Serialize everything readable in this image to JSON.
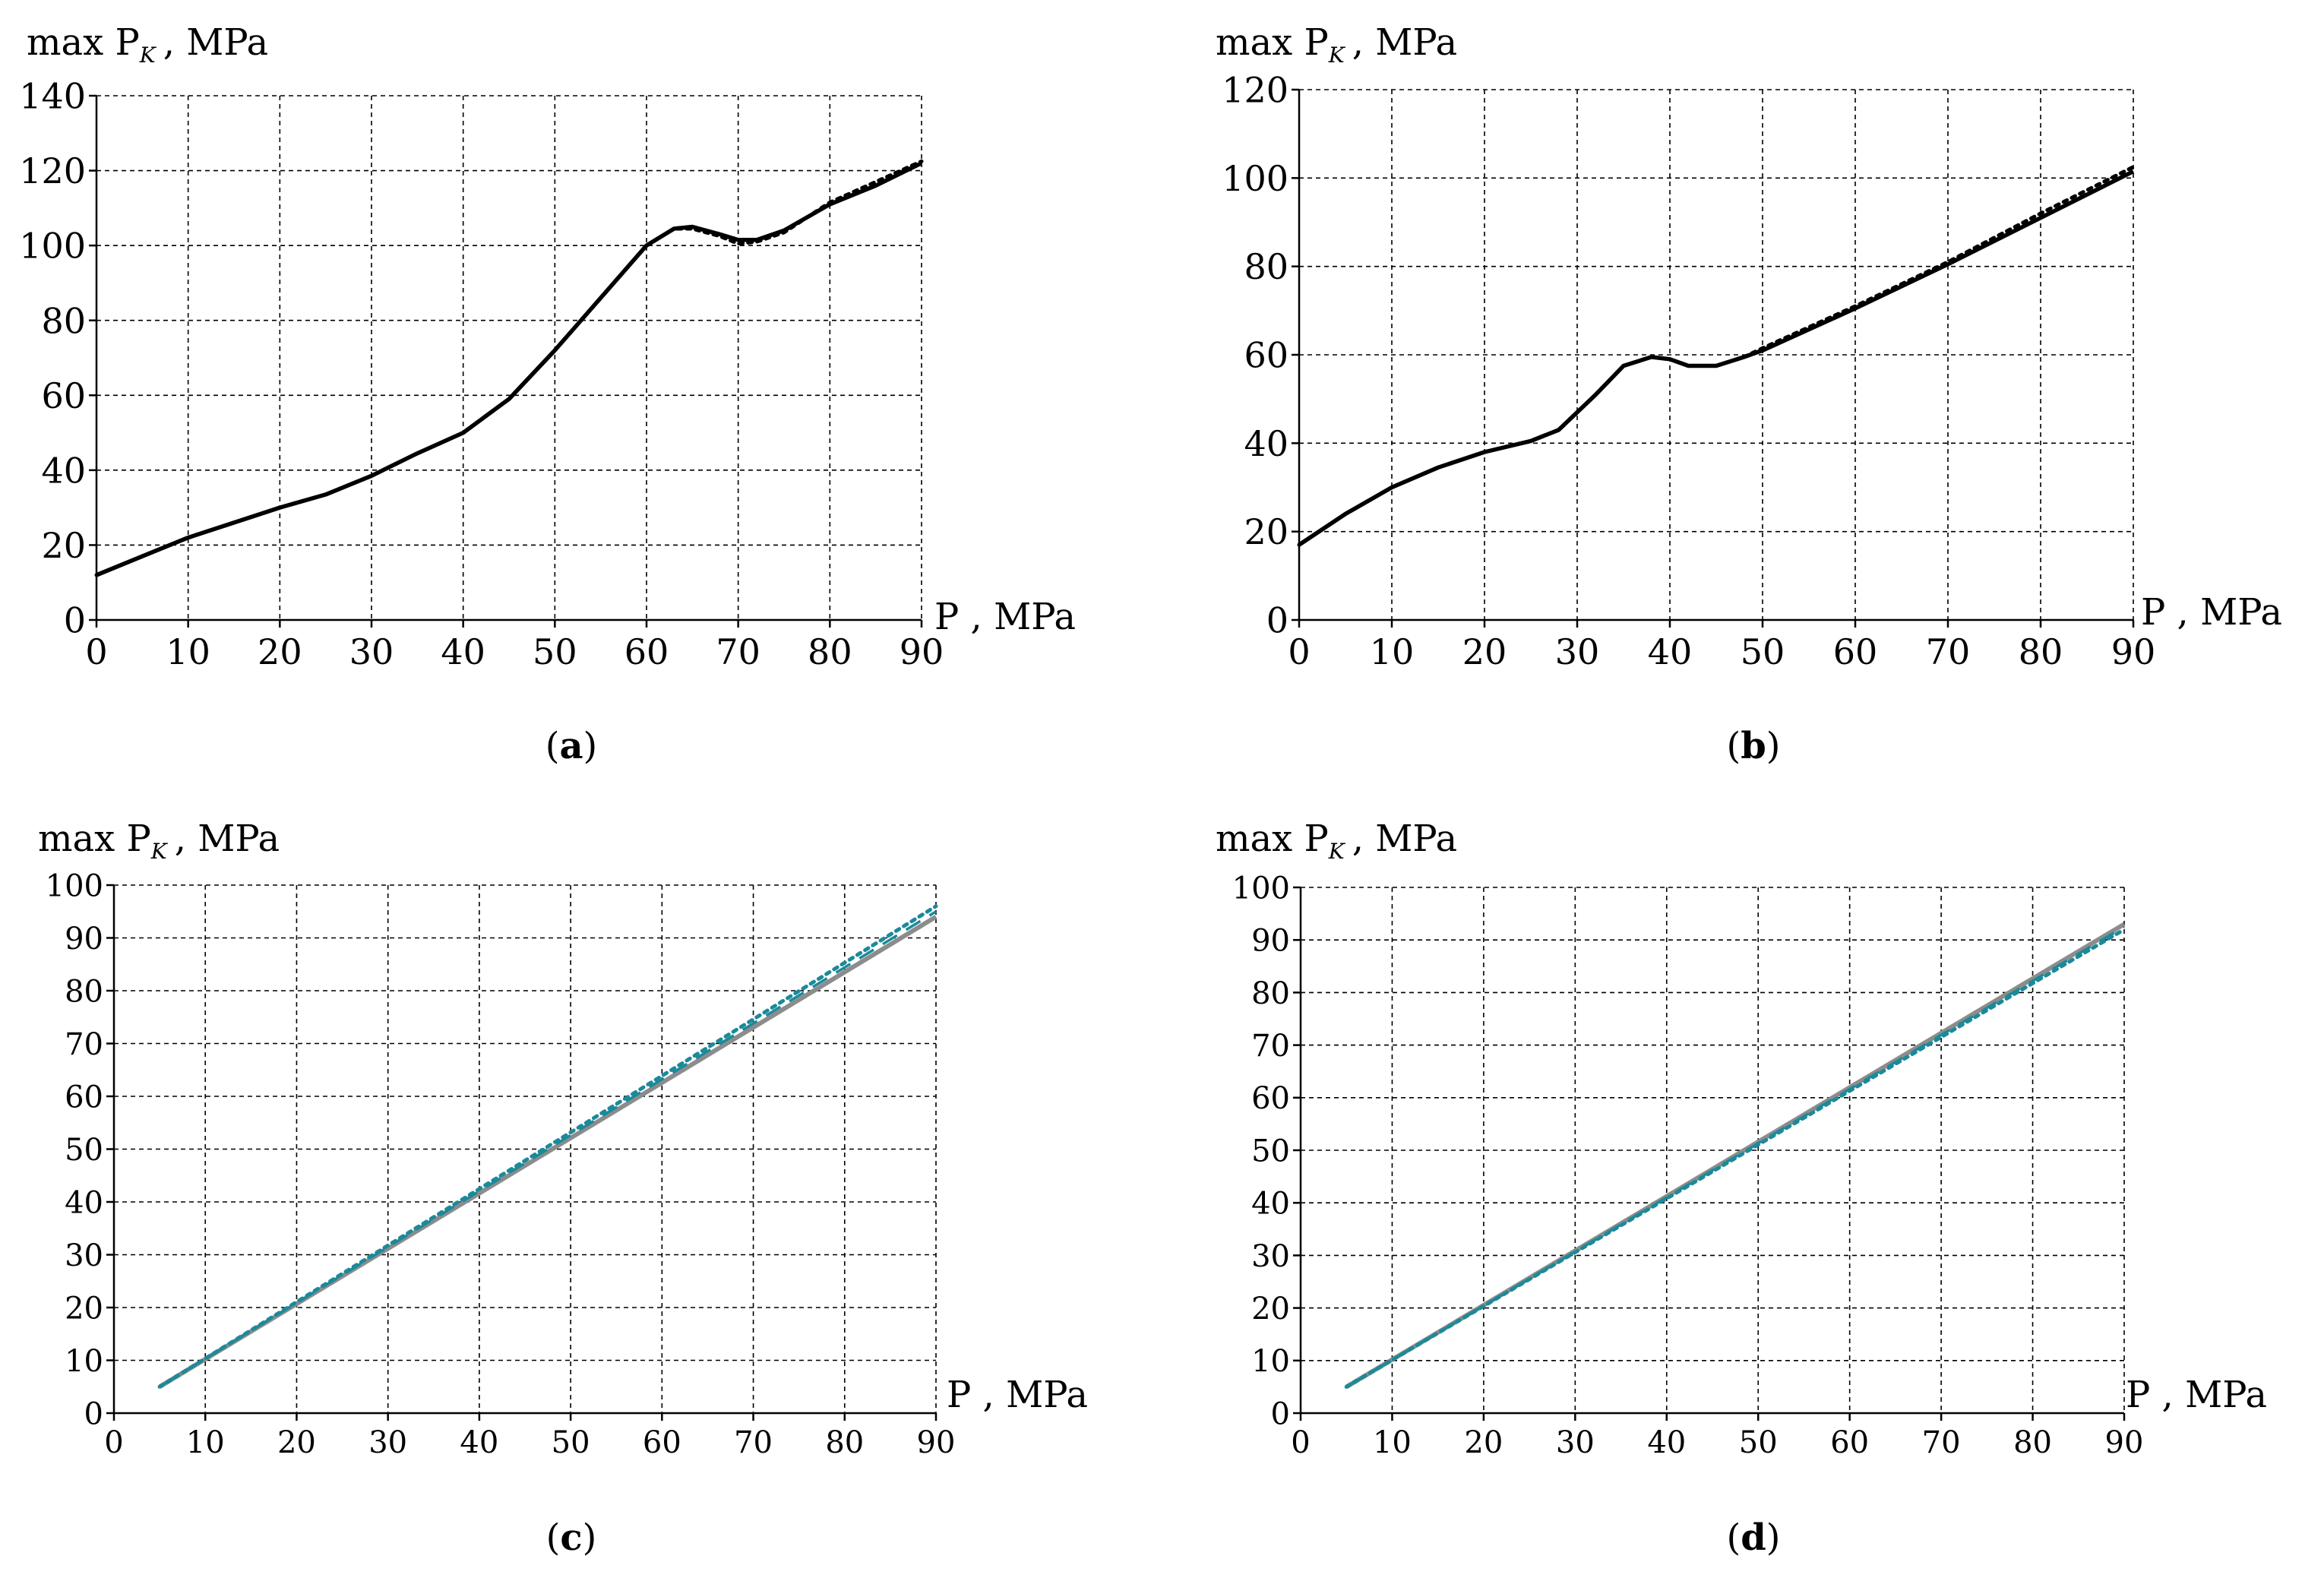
{
  "figure": {
    "panels": [
      {
        "id": "a",
        "label": "(a)",
        "label_letter": "a"
      },
      {
        "id": "b",
        "label": "(b)",
        "label_letter": "b"
      },
      {
        "id": "c",
        "label": "(c)",
        "label_letter": "c"
      },
      {
        "id": "d",
        "label": "(d)",
        "label_letter": "d"
      }
    ]
  },
  "colors": {
    "black": "#000000",
    "teal": "#1a8a9a",
    "gray": "#8c8c8c",
    "grid": "#000000"
  },
  "chart_data": [
    {
      "panel": "a",
      "type": "line",
      "title": "",
      "ylabel": {
        "main": "max P",
        "sub": "K",
        "unit": ", MPa"
      },
      "xlabel": "P , MPa",
      "xlim": [
        0,
        90
      ],
      "ylim": [
        0,
        140
      ],
      "xticks": [
        "0",
        "10",
        "20",
        "30",
        "40",
        "50",
        "60",
        "70",
        "80",
        "90"
      ],
      "yticks": [
        "0",
        "20",
        "40",
        "60",
        "80",
        "100",
        "120",
        "140"
      ],
      "grid": true,
      "series": [
        {
          "name": "solid",
          "style": "solid",
          "color": "black",
          "x": [
            0,
            5,
            10,
            15,
            20,
            25,
            30,
            35,
            40,
            45,
            50,
            55,
            60,
            63,
            65,
            68,
            70,
            72,
            75,
            80,
            85,
            90
          ],
          "y": [
            12,
            17,
            22,
            26,
            30,
            33.5,
            38.5,
            44.5,
            50,
            59,
            72,
            86,
            100,
            104.5,
            105,
            103,
            101.5,
            101.5,
            104,
            111,
            116,
            122
          ]
        },
        {
          "name": "dotted",
          "style": "dotted",
          "color": "black",
          "x": [
            0,
            5,
            10,
            15,
            20,
            25,
            30,
            35,
            40,
            45,
            50,
            55,
            60,
            63,
            65,
            68,
            70,
            72,
            75,
            80,
            85,
            90
          ],
          "y": [
            12,
            17,
            22,
            26,
            30,
            33.5,
            38.5,
            44.5,
            50,
            59,
            72,
            86,
            100,
            104.5,
            104.5,
            102.5,
            100.5,
            101,
            103.5,
            111.5,
            117,
            122.5
          ]
        }
      ]
    },
    {
      "panel": "b",
      "type": "line",
      "title": "",
      "ylabel": {
        "main": "max P",
        "sub": "K",
        "unit": ", MPa"
      },
      "xlabel": "P , MPa",
      "xlim": [
        0,
        90
      ],
      "ylim": [
        0,
        120
      ],
      "xticks": [
        "0",
        "10",
        "20",
        "30",
        "40",
        "50",
        "60",
        "70",
        "80",
        "90"
      ],
      "yticks": [
        "0",
        "20",
        "40",
        "60",
        "80",
        "100",
        "120"
      ],
      "grid": true,
      "series": [
        {
          "name": "solid",
          "style": "solid",
          "color": "black",
          "x": [
            0,
            5,
            10,
            15,
            20,
            25,
            28,
            32,
            35,
            38,
            40,
            42,
            45,
            48,
            50,
            60,
            70,
            80,
            90
          ],
          "y": [
            17,
            24,
            30,
            34.5,
            38,
            40.5,
            43,
            51,
            57.5,
            59.5,
            59,
            57.5,
            57.5,
            59.5,
            61,
            70.5,
            80.5,
            91,
            101.5
          ]
        },
        {
          "name": "dotted",
          "style": "dotted",
          "color": "black",
          "x": [
            0,
            5,
            10,
            15,
            20,
            25,
            28,
            32,
            35,
            38,
            40,
            42,
            45,
            48,
            50,
            60,
            70,
            80,
            90
          ],
          "y": [
            17,
            24,
            30,
            34.5,
            38,
            40.5,
            43,
            51,
            57.5,
            59.5,
            59,
            57.5,
            57.5,
            59.5,
            61.5,
            71,
            81,
            92,
            102.5
          ]
        }
      ]
    },
    {
      "panel": "c",
      "type": "line",
      "title": "",
      "ylabel": {
        "main": "max P",
        "sub": "K",
        "unit": ", MPa"
      },
      "xlabel": "P , MPa",
      "xlim": [
        0,
        90
      ],
      "ylim": [
        0,
        100
      ],
      "xticks": [
        "0",
        "10",
        "20",
        "30",
        "40",
        "50",
        "60",
        "70",
        "80",
        "90"
      ],
      "yticks": [
        "0",
        "10",
        "20",
        "30",
        "40",
        "50",
        "60",
        "70",
        "80",
        "90",
        "100"
      ],
      "grid": true,
      "series": [
        {
          "name": "gray solid",
          "style": "solid",
          "color": "gray",
          "x": [
            5,
            90
          ],
          "y": [
            5,
            94
          ]
        },
        {
          "name": "teal dashed",
          "style": "dashed",
          "color": "teal",
          "x": [
            5,
            90
          ],
          "y": [
            5,
            95
          ]
        },
        {
          "name": "teal dotted",
          "style": "dotted",
          "color": "teal",
          "x": [
            5,
            90
          ],
          "y": [
            5,
            96
          ]
        }
      ]
    },
    {
      "panel": "d",
      "type": "line",
      "title": "",
      "ylabel": {
        "main": "max P",
        "sub": "K",
        "unit": ", MPa"
      },
      "xlabel": "P , MPa",
      "xlim": [
        0,
        90
      ],
      "ylim": [
        0,
        100
      ],
      "xticks": [
        "0",
        "10",
        "20",
        "30",
        "40",
        "50",
        "60",
        "70",
        "80",
        "90"
      ],
      "yticks": [
        "0",
        "10",
        "20",
        "30",
        "40",
        "50",
        "60",
        "70",
        "80",
        "90",
        "100"
      ],
      "grid": true,
      "series": [
        {
          "name": "gray solid",
          "style": "solid",
          "color": "gray",
          "x": [
            5,
            90
          ],
          "y": [
            5,
            93
          ]
        },
        {
          "name": "teal dashed",
          "style": "dashed",
          "color": "teal",
          "x": [
            5,
            90
          ],
          "y": [
            5,
            92.5
          ]
        },
        {
          "name": "teal dotted",
          "style": "dotted",
          "color": "teal",
          "x": [
            5,
            90
          ],
          "y": [
            5,
            92
          ]
        }
      ]
    }
  ]
}
